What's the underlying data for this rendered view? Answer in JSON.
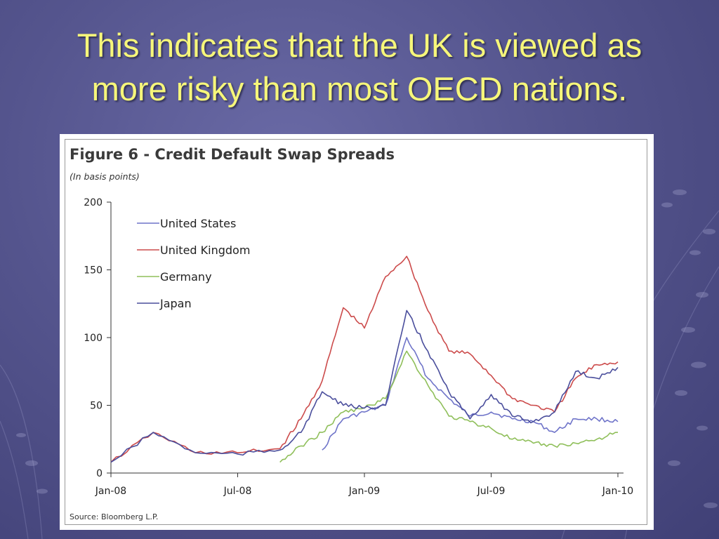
{
  "slide": {
    "title_lines": [
      "This indicates that the UK is viewed as",
      "more risky than most OECD nations."
    ]
  },
  "chart_data": {
    "type": "line",
    "title": "Figure 6 - Credit Default Swap Spreads",
    "units_note": "(In basis points)",
    "source": "Source: Bloomberg L.P.",
    "x_ticks": [
      "Jan-08",
      "Jul-08",
      "Jan-09",
      "Jul-09",
      "Jan-10"
    ],
    "x_tick_dates": [
      "2008-01",
      "2008-07",
      "2009-01",
      "2009-07",
      "2010-01"
    ],
    "y_ticks": [
      0,
      50,
      100,
      150,
      200
    ],
    "ylim": [
      0,
      200
    ],
    "xlim": [
      "2008-01",
      "2010-01"
    ],
    "legend_position": "upper-left",
    "grid": false,
    "series": [
      {
        "name": "United States",
        "color": "#6f74c9",
        "points": [
          [
            "2008-11",
            17
          ],
          [
            "2008-12",
            40
          ],
          [
            "2009-01",
            45
          ],
          [
            "2009-02",
            50
          ],
          [
            "2009-03",
            100
          ],
          [
            "2009-04",
            70
          ],
          [
            "2009-05",
            55
          ],
          [
            "2009-06",
            42
          ],
          [
            "2009-07",
            45
          ],
          [
            "2009-08",
            40
          ],
          [
            "2009-09",
            38
          ],
          [
            "2009-10",
            30
          ],
          [
            "2009-11",
            40
          ],
          [
            "2009-12",
            40
          ],
          [
            "2010-01",
            38
          ]
        ]
      },
      {
        "name": "United Kingdom",
        "color": "#cc4b4b",
        "points": [
          [
            "2008-01",
            8
          ],
          [
            "2008-03",
            30
          ],
          [
            "2008-05",
            15
          ],
          [
            "2008-07",
            15
          ],
          [
            "2008-09",
            18
          ],
          [
            "2008-10",
            40
          ],
          [
            "2008-11",
            68
          ],
          [
            "2008-12",
            122
          ],
          [
            "2009-01",
            107
          ],
          [
            "2009-02",
            145
          ],
          [
            "2009-03",
            160
          ],
          [
            "2009-04",
            120
          ],
          [
            "2009-05",
            90
          ],
          [
            "2009-06",
            88
          ],
          [
            "2009-07",
            72
          ],
          [
            "2009-08",
            55
          ],
          [
            "2009-09",
            50
          ],
          [
            "2009-10",
            45
          ],
          [
            "2009-11",
            70
          ],
          [
            "2009-12",
            80
          ],
          [
            "2010-01",
            82
          ]
        ]
      },
      {
        "name": "Germany",
        "color": "#8fbf5a",
        "points": [
          [
            "2008-09",
            8
          ],
          [
            "2008-10",
            20
          ],
          [
            "2008-11",
            30
          ],
          [
            "2008-12",
            45
          ],
          [
            "2009-01",
            48
          ],
          [
            "2009-02",
            55
          ],
          [
            "2009-03",
            90
          ],
          [
            "2009-04",
            65
          ],
          [
            "2009-05",
            42
          ],
          [
            "2009-06",
            38
          ],
          [
            "2009-07",
            33
          ],
          [
            "2009-08",
            25
          ],
          [
            "2009-09",
            22
          ],
          [
            "2009-10",
            20
          ],
          [
            "2009-11",
            22
          ],
          [
            "2009-12",
            25
          ],
          [
            "2010-01",
            30
          ]
        ]
      },
      {
        "name": "Japan",
        "color": "#4a4e9c",
        "points": [
          [
            "2008-01",
            8
          ],
          [
            "2008-03",
            30
          ],
          [
            "2008-05",
            15
          ],
          [
            "2008-07",
            14
          ],
          [
            "2008-09",
            17
          ],
          [
            "2008-10",
            30
          ],
          [
            "2008-11",
            60
          ],
          [
            "2008-12",
            50
          ],
          [
            "2009-01",
            48
          ],
          [
            "2009-02",
            50
          ],
          [
            "2009-03",
            120
          ],
          [
            "2009-04",
            90
          ],
          [
            "2009-05",
            60
          ],
          [
            "2009-06",
            40
          ],
          [
            "2009-07",
            58
          ],
          [
            "2009-08",
            42
          ],
          [
            "2009-09",
            38
          ],
          [
            "2009-10",
            45
          ],
          [
            "2009-11",
            75
          ],
          [
            "2009-12",
            70
          ],
          [
            "2010-01",
            78
          ]
        ]
      }
    ]
  }
}
